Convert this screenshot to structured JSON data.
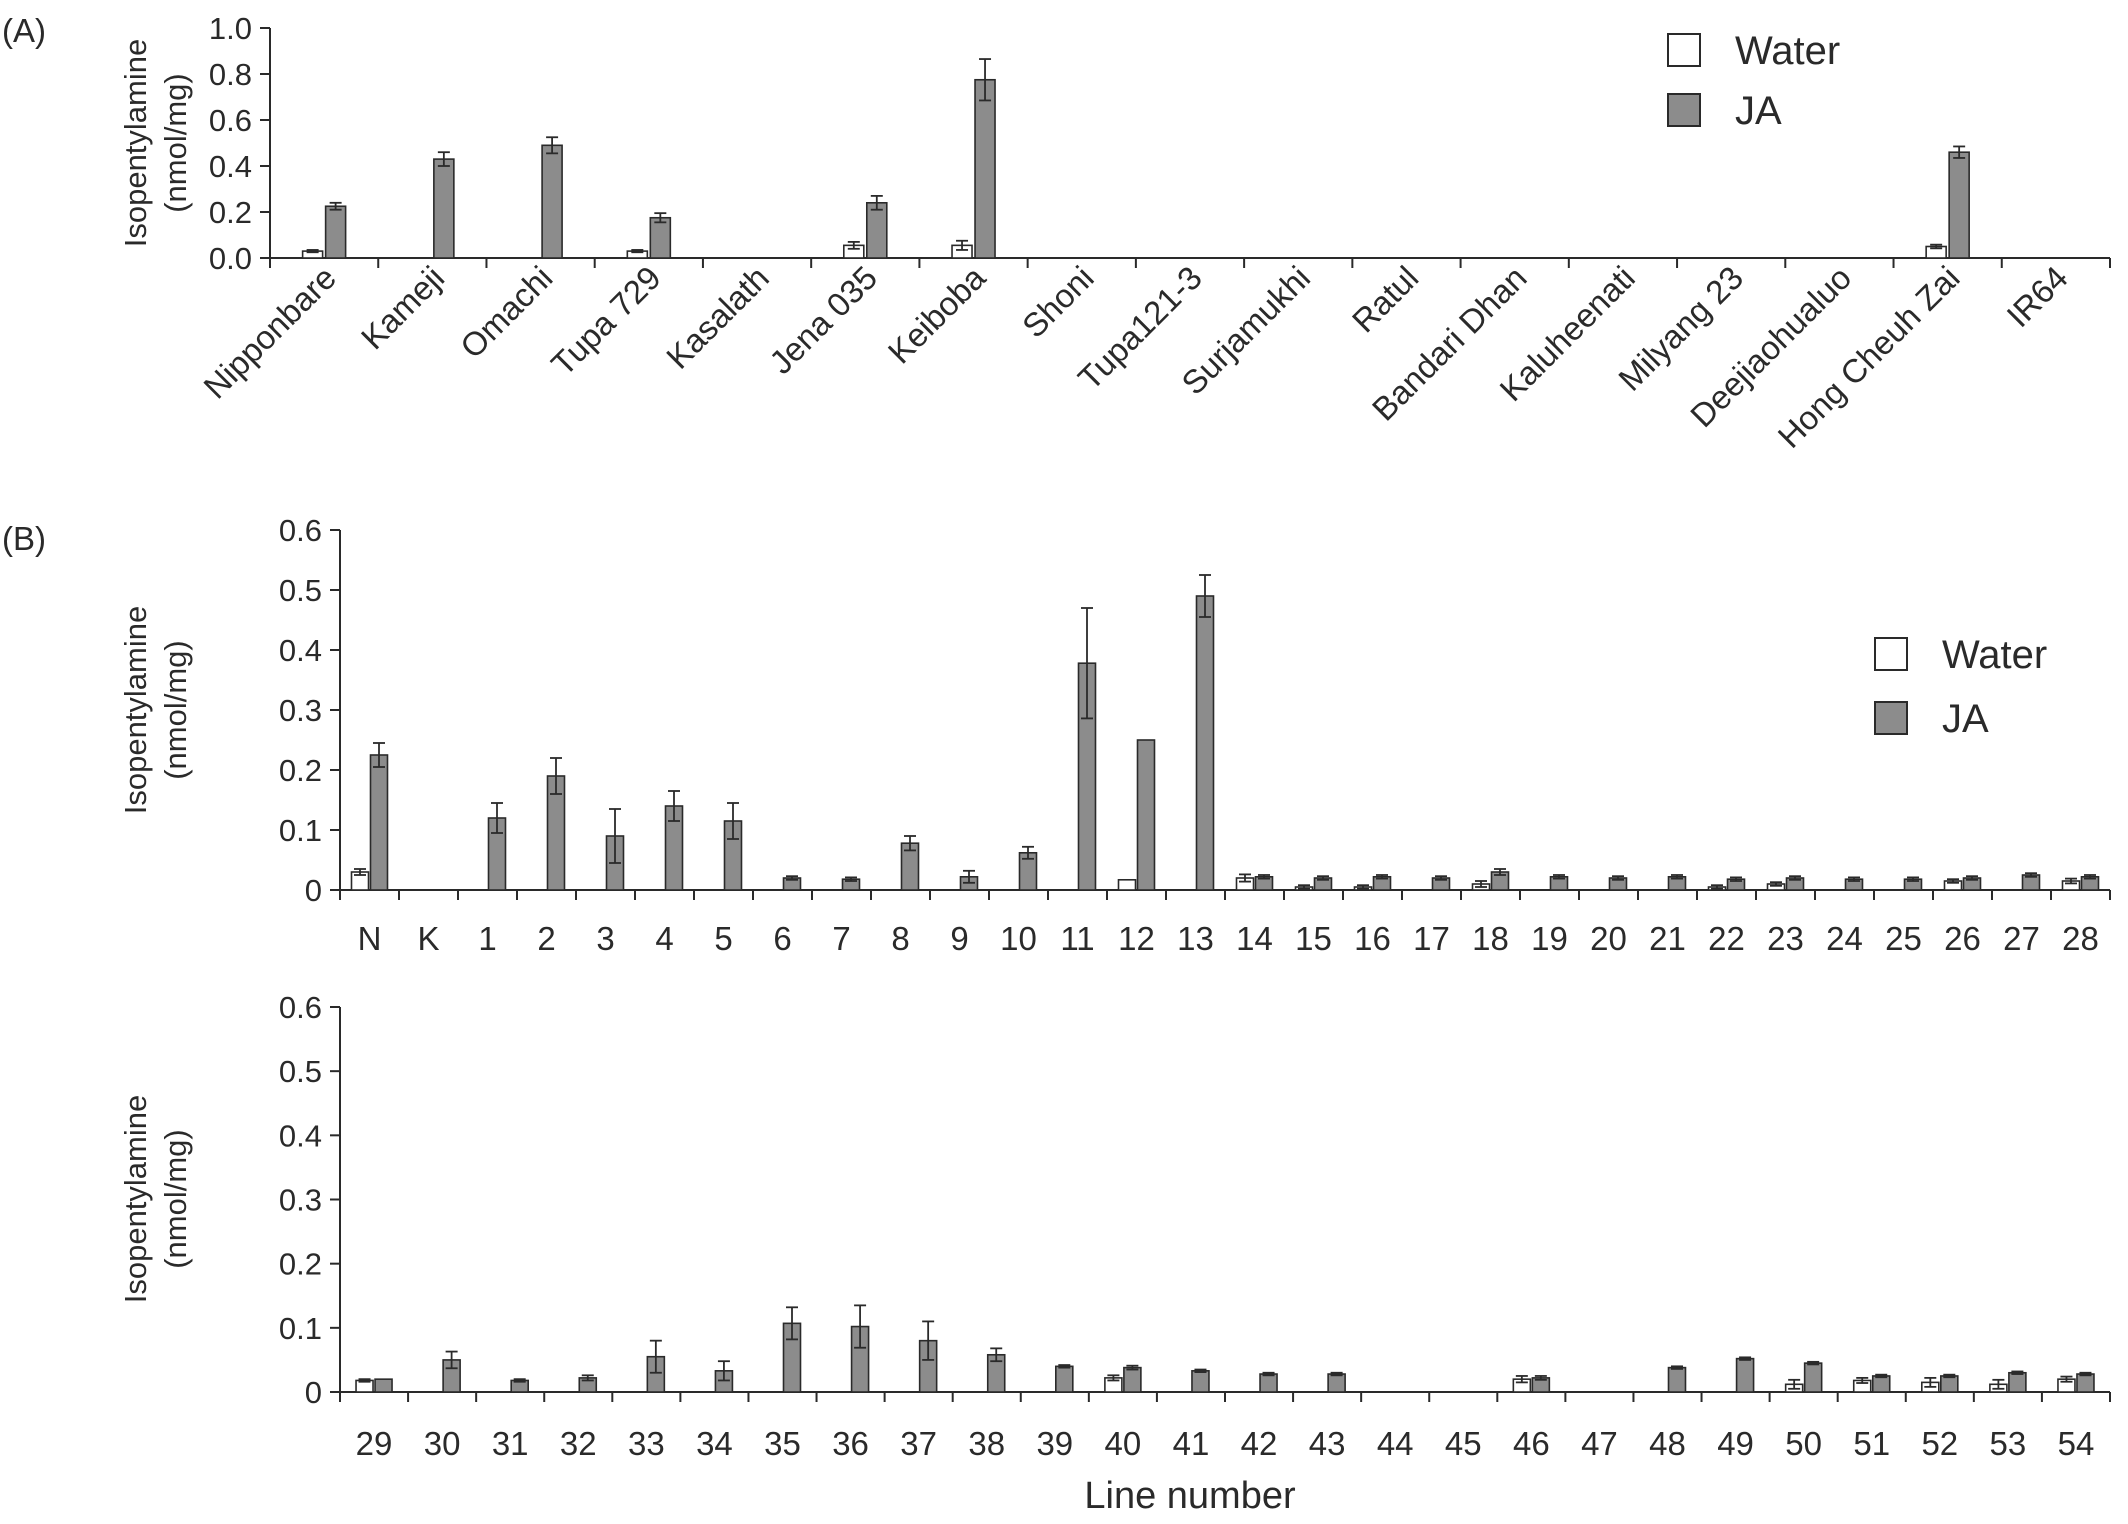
{
  "colors": {
    "water": "#ffffff",
    "ja": "#8c8c8c",
    "stroke": "#2a2a2a"
  },
  "chart_data": [
    {
      "type": "bar",
      "panel_label": "(A)",
      "ylabel_lines": [
        "Isopentylamine",
        "(nmol/mg)"
      ],
      "ylim": [
        0,
        1.0
      ],
      "yticks": [
        "0.0",
        "0.2",
        "0.4",
        "0.6",
        "0.8",
        "1.0"
      ],
      "legend_position": "top-right",
      "categories": [
        "Nipponbare",
        "Kameji",
        "Omachi",
        "Tupa 729",
        "Kasalath",
        "Jena 035",
        "Keiboba",
        "Shoni",
        "Tupa121-3",
        "Surjamukhi",
        "Ratul",
        "Bandari Dhan",
        "Kaluheenati",
        "Milyang 23",
        "Deejiaohualuo",
        "Hong Cheuh Zai",
        "IR64"
      ],
      "series": [
        {
          "name": "Water",
          "values": [
            0.03,
            0,
            0,
            0.03,
            0,
            0.055,
            0.055,
            0,
            0,
            0,
            0,
            0,
            0,
            0,
            0,
            0.05,
            0
          ],
          "errors": [
            0.005,
            0,
            0,
            0.005,
            0,
            0.015,
            0.02,
            0,
            0,
            0,
            0,
            0,
            0,
            0,
            0,
            0.008,
            0
          ]
        },
        {
          "name": "JA",
          "values": [
            0.225,
            0.43,
            0.49,
            0.175,
            0,
            0.24,
            0.775,
            0,
            0,
            0,
            0,
            0,
            0,
            0,
            0,
            0.46,
            0
          ],
          "errors": [
            0.015,
            0.03,
            0.035,
            0.02,
            0,
            0.03,
            0.09,
            0,
            0,
            0,
            0,
            0,
            0,
            0,
            0,
            0.025,
            0
          ]
        }
      ]
    },
    {
      "type": "bar",
      "panel_label": "(B)",
      "ylabel_lines": [
        "Isopentylamine",
        "(nmol/mg)"
      ],
      "ylim": [
        0,
        0.6
      ],
      "yticks": [
        "0",
        "0.1",
        "0.2",
        "0.3",
        "0.4",
        "0.5",
        "0.6"
      ],
      "legend_position": "top-right",
      "categories": [
        "N",
        "K",
        "1",
        "2",
        "3",
        "4",
        "5",
        "6",
        "7",
        "8",
        "9",
        "10",
        "11",
        "12",
        "13",
        "14",
        "15",
        "16",
        "17",
        "18",
        "19",
        "20",
        "21",
        "22",
        "23",
        "24",
        "25",
        "26",
        "27",
        "28"
      ],
      "series": [
        {
          "name": "Water",
          "values": [
            0.03,
            0,
            0,
            0,
            0,
            0,
            0,
            0,
            0,
            0,
            0,
            0,
            0,
            0.017,
            0,
            0.02,
            0.005,
            0.005,
            0,
            0.01,
            0,
            0,
            0,
            0.005,
            0.01,
            0,
            0,
            0.015,
            0,
            0.015
          ],
          "errors": [
            0.005,
            0,
            0,
            0,
            0,
            0,
            0,
            0,
            0,
            0,
            0,
            0,
            0,
            0,
            0,
            0.006,
            0.003,
            0.003,
            0,
            0.005,
            0,
            0,
            0,
            0.003,
            0.003,
            0,
            0,
            0.003,
            0,
            0.004
          ]
        },
        {
          "name": "JA",
          "values": [
            0.225,
            0,
            0.12,
            0.19,
            0.09,
            0.14,
            0.115,
            0.02,
            0.018,
            0.078,
            0.022,
            0.062,
            0.378,
            0.25,
            0.49,
            0.022,
            0.02,
            0.022,
            0.02,
            0.03,
            0.022,
            0.02,
            0.022,
            0.018,
            0.02,
            0.018,
            0.018,
            0.02,
            0.025,
            0.022
          ],
          "errors": [
            0.02,
            0,
            0.025,
            0.03,
            0.045,
            0.025,
            0.03,
            0.003,
            0.003,
            0.012,
            0.01,
            0.01,
            0.092,
            0,
            0.035,
            0.003,
            0.003,
            0.003,
            0.003,
            0.005,
            0.003,
            0.003,
            0.003,
            0.003,
            0.003,
            0.003,
            0.003,
            0.003,
            0.003,
            0.003
          ]
        }
      ]
    },
    {
      "type": "bar",
      "ylabel_lines": [
        "Isopentylamine",
        "(nmol/mg)"
      ],
      "xlabel": "Line number",
      "ylim": [
        0,
        0.6
      ],
      "yticks": [
        "0",
        "0.1",
        "0.2",
        "0.3",
        "0.4",
        "0.5",
        "0.6"
      ],
      "categories": [
        "29",
        "30",
        "31",
        "32",
        "33",
        "34",
        "35",
        "36",
        "37",
        "38",
        "39",
        "40",
        "41",
        "42",
        "43",
        "44",
        "45",
        "46",
        "47",
        "48",
        "49",
        "50",
        "51",
        "52",
        "53",
        "54"
      ],
      "series": [
        {
          "name": "Water",
          "values": [
            0.018,
            0,
            0,
            0,
            0,
            0,
            0,
            0,
            0,
            0,
            0,
            0.022,
            0,
            0,
            0,
            0,
            0,
            0.02,
            0,
            0,
            0,
            0.012,
            0.018,
            0.015,
            0.012,
            0.02
          ],
          "errors": [
            0.002,
            0,
            0,
            0,
            0,
            0,
            0,
            0,
            0,
            0,
            0,
            0.004,
            0,
            0,
            0,
            0,
            0,
            0.005,
            0,
            0,
            0,
            0.007,
            0.004,
            0.007,
            0.007,
            0.004
          ]
        },
        {
          "name": "JA",
          "values": [
            0.02,
            0.05,
            0.018,
            0.022,
            0.055,
            0.033,
            0.107,
            0.102,
            0.08,
            0.058,
            0.04,
            0.038,
            0.033,
            0.028,
            0.028,
            0,
            0,
            0.022,
            0,
            0.038,
            0.052,
            0.045,
            0.025,
            0.025,
            0.03,
            0.028
          ],
          "errors": [
            0,
            0.013,
            0.002,
            0.004,
            0.025,
            0.015,
            0.025,
            0.033,
            0.03,
            0.01,
            0.002,
            0.003,
            0.002,
            0.002,
            0.002,
            0,
            0,
            0.003,
            0,
            0.002,
            0.002,
            0.002,
            0.002,
            0.002,
            0.002,
            0.002
          ]
        }
      ]
    }
  ]
}
